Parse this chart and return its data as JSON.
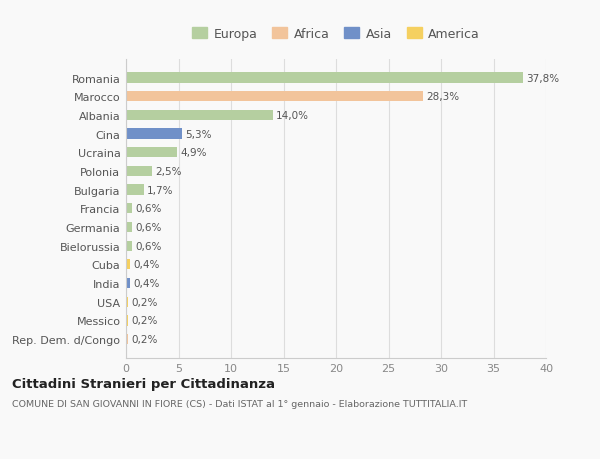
{
  "categories": [
    "Romania",
    "Marocco",
    "Albania",
    "Cina",
    "Ucraina",
    "Polonia",
    "Bulgaria",
    "Francia",
    "Germania",
    "Bielorussia",
    "Cuba",
    "India",
    "USA",
    "Messico",
    "Rep. Dem. d/Congo"
  ],
  "values": [
    37.8,
    28.3,
    14.0,
    5.3,
    4.9,
    2.5,
    1.7,
    0.6,
    0.6,
    0.6,
    0.4,
    0.4,
    0.2,
    0.2,
    0.2
  ],
  "labels": [
    "37,8%",
    "28,3%",
    "14,0%",
    "5,3%",
    "4,9%",
    "2,5%",
    "1,7%",
    "0,6%",
    "0,6%",
    "0,6%",
    "0,4%",
    "0,4%",
    "0,2%",
    "0,2%",
    "0,2%"
  ],
  "colors": [
    "#b5cfa0",
    "#f2c49b",
    "#b5cfa0",
    "#7090c8",
    "#b5cfa0",
    "#b5cfa0",
    "#b5cfa0",
    "#b5cfa0",
    "#b5cfa0",
    "#b5cfa0",
    "#f5d060",
    "#7090c8",
    "#f5d060",
    "#f5d060",
    "#f2c49b"
  ],
  "legend": [
    {
      "label": "Europa",
      "color": "#b5cfa0"
    },
    {
      "label": "Africa",
      "color": "#f2c49b"
    },
    {
      "label": "Asia",
      "color": "#7090c8"
    },
    {
      "label": "America",
      "color": "#f5d060"
    }
  ],
  "xlim": [
    0,
    40
  ],
  "xticks": [
    0,
    5,
    10,
    15,
    20,
    25,
    30,
    35,
    40
  ],
  "title": "Cittadini Stranieri per Cittadinanza",
  "subtitle": "COMUNE DI SAN GIOVANNI IN FIORE (CS) - Dati ISTAT al 1° gennaio - Elaborazione TUTTITALIA.IT",
  "background_color": "#f9f9f9",
  "grid_color": "#dddddd"
}
